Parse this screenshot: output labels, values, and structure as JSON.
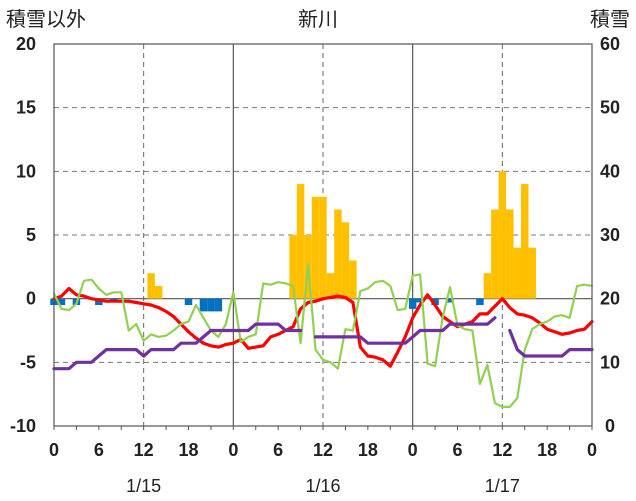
{
  "chart_data": {
    "type": "bar+line",
    "title": "新川",
    "left_axis_label": "積雪以外",
    "right_axis_label": "積雪",
    "left_ylim": [
      -10,
      20
    ],
    "left_yticks": [
      -10,
      -5,
      0,
      5,
      10,
      15,
      20
    ],
    "right_ylim": [
      0,
      60
    ],
    "right_yticks": [
      0,
      10,
      20,
      30,
      40,
      50,
      60
    ],
    "x_range_hours": [
      0,
      72
    ],
    "x_tick_hours": [
      0,
      3,
      6,
      9,
      12,
      15,
      18,
      21,
      24,
      27,
      30,
      33,
      36,
      39,
      42,
      45,
      48,
      51,
      54,
      57,
      60,
      63,
      66,
      69,
      72
    ],
    "x_tick_labels": [
      "0",
      "",
      "6",
      "",
      "12",
      "",
      "18",
      "",
      "0",
      "",
      "6",
      "",
      "12",
      "",
      "18",
      "",
      "0",
      "",
      "6",
      "",
      "12",
      "",
      "18",
      "",
      "0"
    ],
    "date_labels": [
      {
        "hour": 12,
        "text": "1/15"
      },
      {
        "hour": 36,
        "text": "1/16"
      },
      {
        "hour": 60,
        "text": "1/17"
      }
    ],
    "grid": {
      "solid_hours": [
        24,
        48
      ],
      "dashed_hours": [
        12,
        36,
        60
      ],
      "zero_line": true
    },
    "bars": {
      "colors": {
        "positive": "#ffc000",
        "negative": "#0070c0"
      },
      "values": [
        {
          "hour": 0,
          "value": -0.5
        },
        {
          "hour": 1,
          "value": -0.5
        },
        {
          "hour": 3,
          "value": -0.5
        },
        {
          "hour": 6,
          "value": -0.5
        },
        {
          "hour": 8,
          "value": -0.3
        },
        {
          "hour": 13,
          "value": 2.0
        },
        {
          "hour": 14,
          "value": 1.0
        },
        {
          "hour": 18,
          "value": -0.5
        },
        {
          "hour": 20,
          "value": -1.0
        },
        {
          "hour": 21,
          "value": -1.0
        },
        {
          "hour": 22,
          "value": -1.0
        },
        {
          "hour": 32,
          "value": 5.0
        },
        {
          "hour": 33,
          "value": 9.0
        },
        {
          "hour": 34,
          "value": 5.0
        },
        {
          "hour": 35,
          "value": 8.0
        },
        {
          "hour": 36,
          "value": 8.0
        },
        {
          "hour": 37,
          "value": 2.0
        },
        {
          "hour": 38,
          "value": 7.0
        },
        {
          "hour": 39,
          "value": 6.0
        },
        {
          "hour": 40,
          "value": 3.0
        },
        {
          "hour": 48,
          "value": -0.8
        },
        {
          "hour": 49,
          "value": -0.3
        },
        {
          "hour": 51,
          "value": -0.5
        },
        {
          "hour": 53,
          "value": -0.3
        },
        {
          "hour": 57,
          "value": -0.5
        },
        {
          "hour": 58,
          "value": 2.0
        },
        {
          "hour": 59,
          "value": 7.0
        },
        {
          "hour": 60,
          "value": 10.0
        },
        {
          "hour": 61,
          "value": 7.0
        },
        {
          "hour": 62,
          "value": 4.0
        },
        {
          "hour": 63,
          "value": 9.0
        },
        {
          "hour": 64,
          "value": 4.0
        }
      ]
    },
    "series": [
      {
        "axis": "left",
        "color": "#ff0000",
        "x": [
          0,
          1,
          2,
          3,
          4,
          5,
          6,
          7,
          8,
          9,
          10,
          11,
          12,
          13,
          14,
          15,
          16,
          17,
          18,
          19,
          20,
          21,
          22,
          23,
          24,
          25,
          26,
          27,
          28,
          29,
          30,
          31,
          32,
          33,
          34,
          35,
          36,
          37,
          38,
          39,
          40,
          41,
          42,
          43,
          44,
          45,
          46,
          47,
          48,
          49,
          50,
          51,
          52,
          53,
          54,
          55,
          56,
          57,
          58,
          59,
          60,
          61,
          62,
          63,
          64,
          65,
          66,
          67,
          68,
          69,
          70,
          71,
          72
        ],
        "y": [
          0,
          0.2,
          0.8,
          0.3,
          0.2,
          0,
          -0.1,
          -0.2,
          -0.2,
          -0.2,
          -0.2,
          -0.3,
          -0.4,
          -0.5,
          -0.7,
          -1.0,
          -1.4,
          -2.0,
          -2.6,
          -3.1,
          -3.5,
          -3.7,
          -3.8,
          -3.6,
          -3.5,
          -3.2,
          -3.9,
          -3.8,
          -3.7,
          -3.0,
          -2.8,
          -2.5,
          -2.2,
          -0.8,
          -0.3,
          -0.2,
          0,
          0.1,
          0.2,
          0.1,
          -0.3,
          -3.8,
          -4.5,
          -4.6,
          -4.8,
          -5.3,
          -4.2,
          -3.0,
          -1.5,
          -0.5,
          0.3,
          -0.5,
          -1.4,
          -1.8,
          -2.2,
          -2.0,
          -1.8,
          -1.2,
          -1.2,
          -0.6,
          0.0,
          -0.7,
          -1.2,
          -1.3,
          -1.5,
          -1.9,
          -2.4,
          -2.6,
          -2.8,
          -2.7,
          -2.5,
          -2.4,
          -1.8
        ]
      },
      {
        "axis": "left",
        "color": "#92d050",
        "x": [
          0,
          1,
          2,
          3,
          4,
          5,
          6,
          7,
          8,
          9,
          10,
          11,
          12,
          13,
          14,
          15,
          16,
          17,
          18,
          19,
          20,
          21,
          22,
          23,
          24,
          25,
          26,
          27,
          28,
          29,
          30,
          31,
          32,
          33,
          34,
          35,
          36,
          37,
          38,
          39,
          40,
          41,
          42,
          43,
          44,
          45,
          46,
          47,
          48,
          49,
          50,
          51,
          52,
          53,
          54,
          55,
          56,
          57,
          58,
          59,
          60,
          61,
          62,
          63,
          64,
          65,
          66,
          67,
          68,
          69,
          70,
          71,
          72
        ],
        "y": [
          0.4,
          -0.8,
          -0.9,
          -0.4,
          1.4,
          1.5,
          0.8,
          0.3,
          0.5,
          0.5,
          -2.5,
          -2.0,
          -3.3,
          -2.8,
          -3.0,
          -2.9,
          -2.5,
          -2.0,
          -1.8,
          -0.5,
          -1.5,
          -2.5,
          -3.0,
          -2.0,
          0.5,
          -3.4,
          -3.0,
          -2.8,
          1.2,
          1.1,
          1.3,
          1.2,
          1.0,
          -3.5,
          2.7,
          -4.0,
          -4.8,
          -5.0,
          -5.5,
          -2.4,
          -2.5,
          0.6,
          0.8,
          1.3,
          1.4,
          1.0,
          -0.9,
          -0.8,
          1.8,
          1.9,
          -5.1,
          -5.3,
          -1.5,
          0.9,
          -2.1,
          -2.4,
          -2.5,
          -6.7,
          -5.2,
          -8.2,
          -8.5,
          -8.5,
          -7.8,
          -4.0,
          -2.4,
          -2.0,
          -1.8,
          -1.4,
          -1.3,
          -1.5,
          1.0,
          1.1,
          1.0
        ]
      },
      {
        "axis": "right",
        "color": "#7030a0",
        "x": [
          0,
          1,
          2,
          3,
          4,
          5,
          6,
          7,
          8,
          9,
          10,
          11,
          12,
          13,
          14,
          15,
          16,
          17,
          18,
          19,
          20,
          21,
          22,
          23,
          24,
          25,
          26,
          27,
          28,
          29,
          30,
          31,
          32,
          33,
          34,
          35,
          36,
          37,
          38,
          39,
          40,
          41,
          42,
          43,
          44,
          45,
          46,
          47,
          48,
          49,
          50,
          51,
          52,
          53,
          54,
          55,
          56,
          57,
          58,
          59,
          60,
          61,
          62,
          63,
          64,
          65,
          66,
          67,
          68,
          69,
          70,
          71,
          72
        ],
        "y": [
          9,
          9,
          9,
          10,
          10,
          10,
          11,
          12,
          12,
          12,
          12,
          12,
          11,
          12,
          12,
          12,
          12,
          13,
          13,
          13,
          14,
          15,
          15,
          15,
          15,
          15,
          15,
          16,
          16,
          16,
          16,
          15,
          15,
          15,
          null,
          14,
          14,
          14,
          14,
          14,
          14,
          14,
          13,
          13,
          13,
          13,
          13,
          13,
          14,
          15,
          15,
          15,
          15,
          16,
          16,
          16,
          16,
          16,
          16,
          17,
          null,
          15,
          12,
          11,
          11,
          11,
          11,
          11,
          11,
          12,
          12,
          12,
          12
        ]
      }
    ]
  }
}
